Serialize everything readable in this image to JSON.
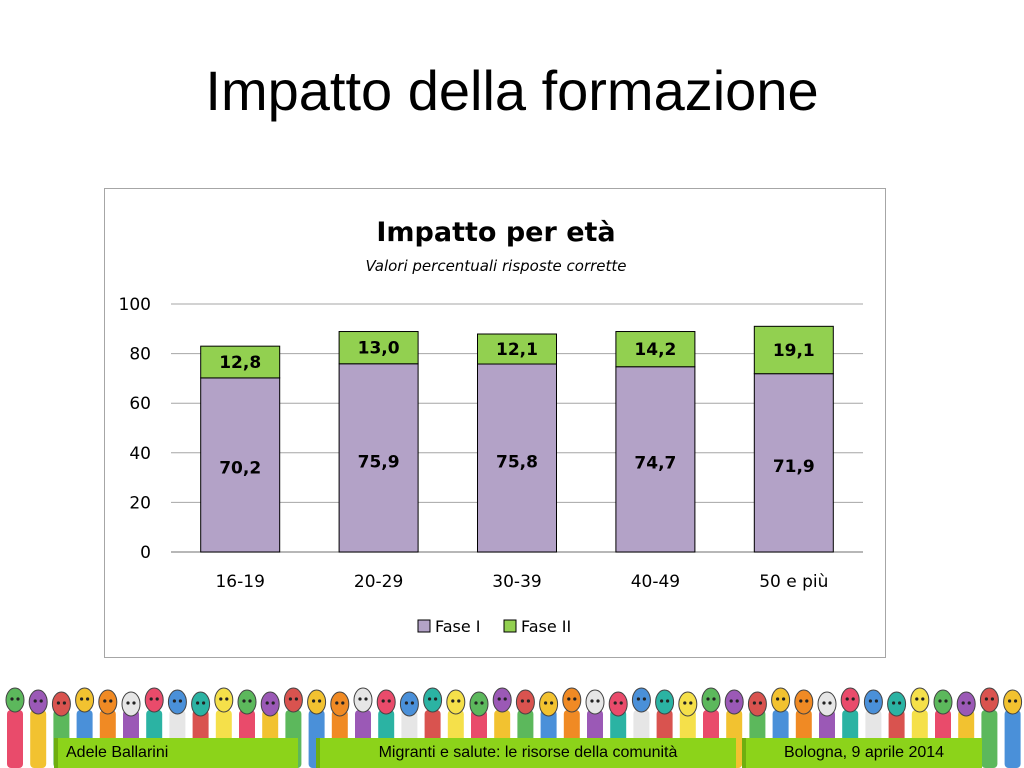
{
  "slide": {
    "title": "Impatto della formazione"
  },
  "chart_data": {
    "type": "bar",
    "stacked": true,
    "title": "Impatto per età",
    "subtitle": "Valori percentuali risposte corrette",
    "categories": [
      "16-19",
      "20-29",
      "30-39",
      "40-49",
      "50 e più"
    ],
    "series": [
      {
        "name": "Fase I",
        "values": [
          70.2,
          75.9,
          75.8,
          74.7,
          71.9
        ],
        "labels": [
          "70,2",
          "75,9",
          "75,8",
          "74,7",
          "71,9"
        ],
        "color": "#b3a2c7"
      },
      {
        "name": "Fase II",
        "values": [
          12.8,
          13.0,
          12.1,
          14.2,
          19.1
        ],
        "labels": [
          "12,8",
          "13,0",
          "12,1",
          "14,2",
          "19,1"
        ],
        "color": "#92d050"
      }
    ],
    "ylim": [
      0,
      100
    ],
    "yticks": [
      0,
      20,
      40,
      60,
      80,
      100
    ],
    "grid": true,
    "legend": "bottom",
    "xlabel": "",
    "ylabel": ""
  },
  "footer": {
    "author": "Adele Ballarini",
    "event": "Migranti e salute: le risorse della comunità",
    "place_date": "Bologna, 9 aprile 2014",
    "accent": "#8cd31a"
  }
}
